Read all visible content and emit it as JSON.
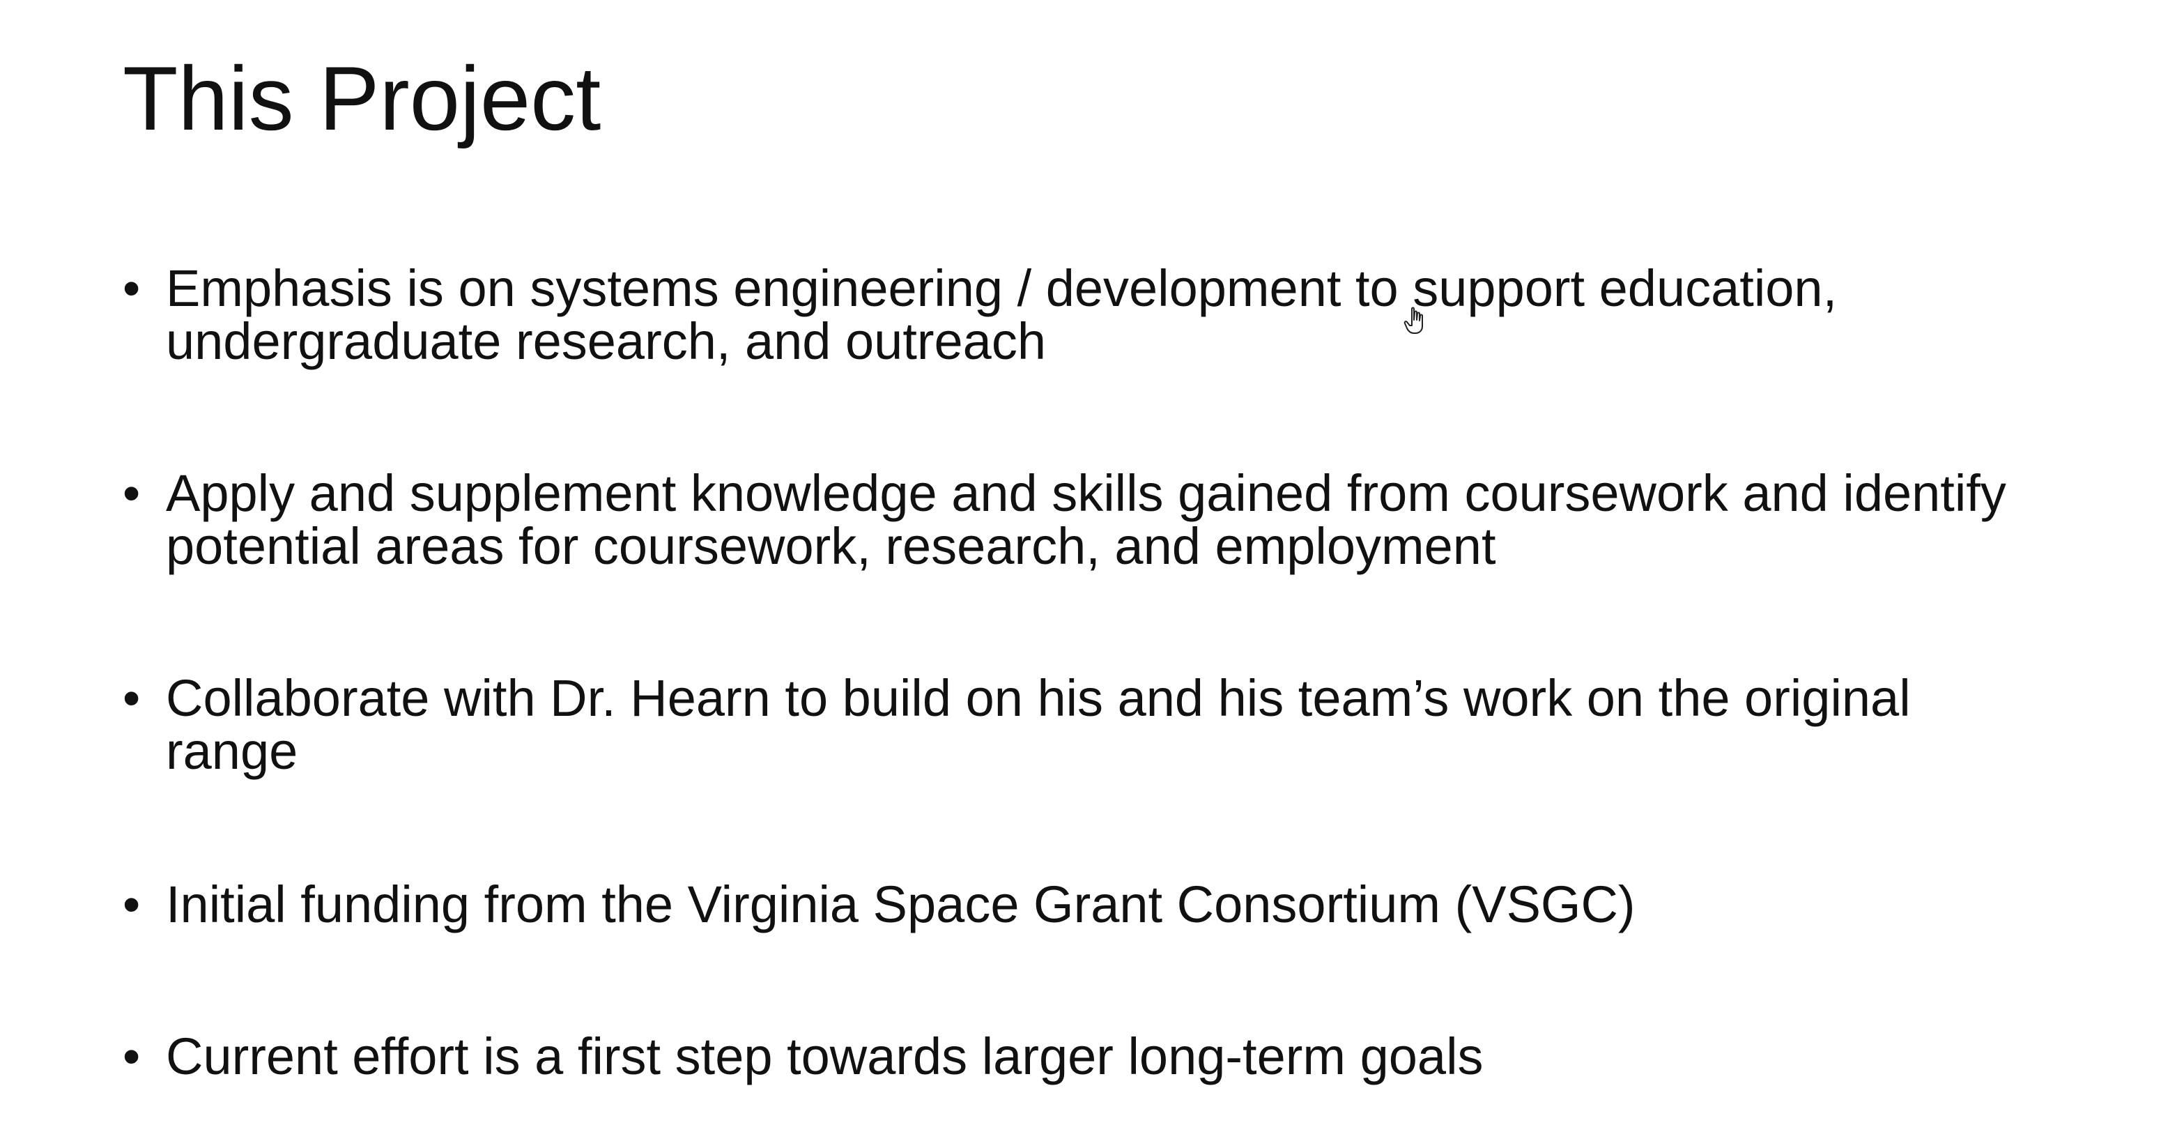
{
  "slide": {
    "title": "This Project",
    "bullets": [
      {
        "marker": "•",
        "text": "Emphasis is on systems engineering / development to support education, undergraduate research, and outreach"
      },
      {
        "marker": "•",
        "text": "Apply and supplement knowledge and skills gained from coursework and identify potential areas for coursework, research, and employment"
      },
      {
        "marker": "•",
        "text": "Collaborate with Dr. Hearn to build on his and his team’s work on the original range"
      },
      {
        "marker": "•",
        "text": "Initial funding from the Virginia Space Grant Consortium (VSGC)"
      },
      {
        "marker": "•",
        "text": "Current effort is a first step towards larger long-term goals"
      }
    ]
  },
  "cursor": {
    "icon": "hand-cursor-icon"
  }
}
